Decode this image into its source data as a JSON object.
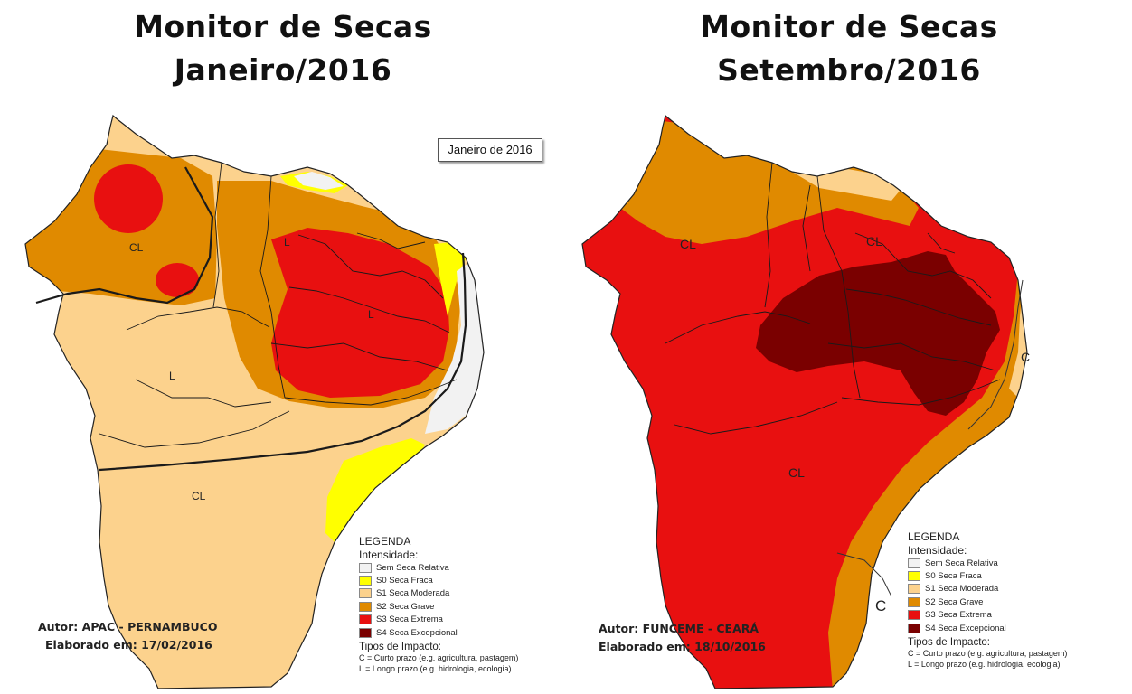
{
  "colors": {
    "sem_seca": "#f2f2f2",
    "s0": "#ffff00",
    "s1": "#fcd28d",
    "s2": "#e08a00",
    "s3": "#e81010",
    "s4": "#7a0000",
    "boundary": "#1a1a1a"
  },
  "left": {
    "title_line1": "Monitor de Secas",
    "title_line2": "Janeiro/2016",
    "inset_label": "Janeiro de 2016",
    "author": "Autor: APAC - PERNAMBUCO",
    "date": "Elaborado em: 17/02/2016",
    "impact_labels": {
      "cl_north": "CL",
      "l_ce": "L",
      "l_pe": "L",
      "l_pi": "L",
      "cl_south": "CL"
    }
  },
  "right": {
    "title_line1": "Monitor de Secas",
    "title_line2": "Setembro/2016",
    "author": "Autor: FUNCEME - CEARÁ",
    "date": "Elaborado em: 18/10/2016",
    "impact_labels": {
      "cl_west": "CL",
      "cl_north": "CL",
      "cl_south": "CL",
      "c_east": "C",
      "c_south": "C"
    }
  },
  "legend": {
    "title": "LEGENDA",
    "intensity": "Intensidade:",
    "items": [
      {
        "label": "Sem Seca Relativa",
        "color": "#f2f2f2"
      },
      {
        "label": "S0 Seca Fraca",
        "color": "#ffff00"
      },
      {
        "label": "S1 Seca Moderada",
        "color": "#fcd28d"
      },
      {
        "label": "S2 Seca Grave",
        "color": "#e08a00"
      },
      {
        "label": "S3 Seca Extrema",
        "color": "#e81010"
      },
      {
        "label": "S4 Seca Excepcional",
        "color": "#7a0000"
      }
    ],
    "impact_title": "Tipos de Impacto:",
    "impact_c": "C = Curto prazo (e.g. agricultura, pastagem)",
    "impact_l": "L = Longo prazo (e.g. hidrologia, ecologia)"
  }
}
